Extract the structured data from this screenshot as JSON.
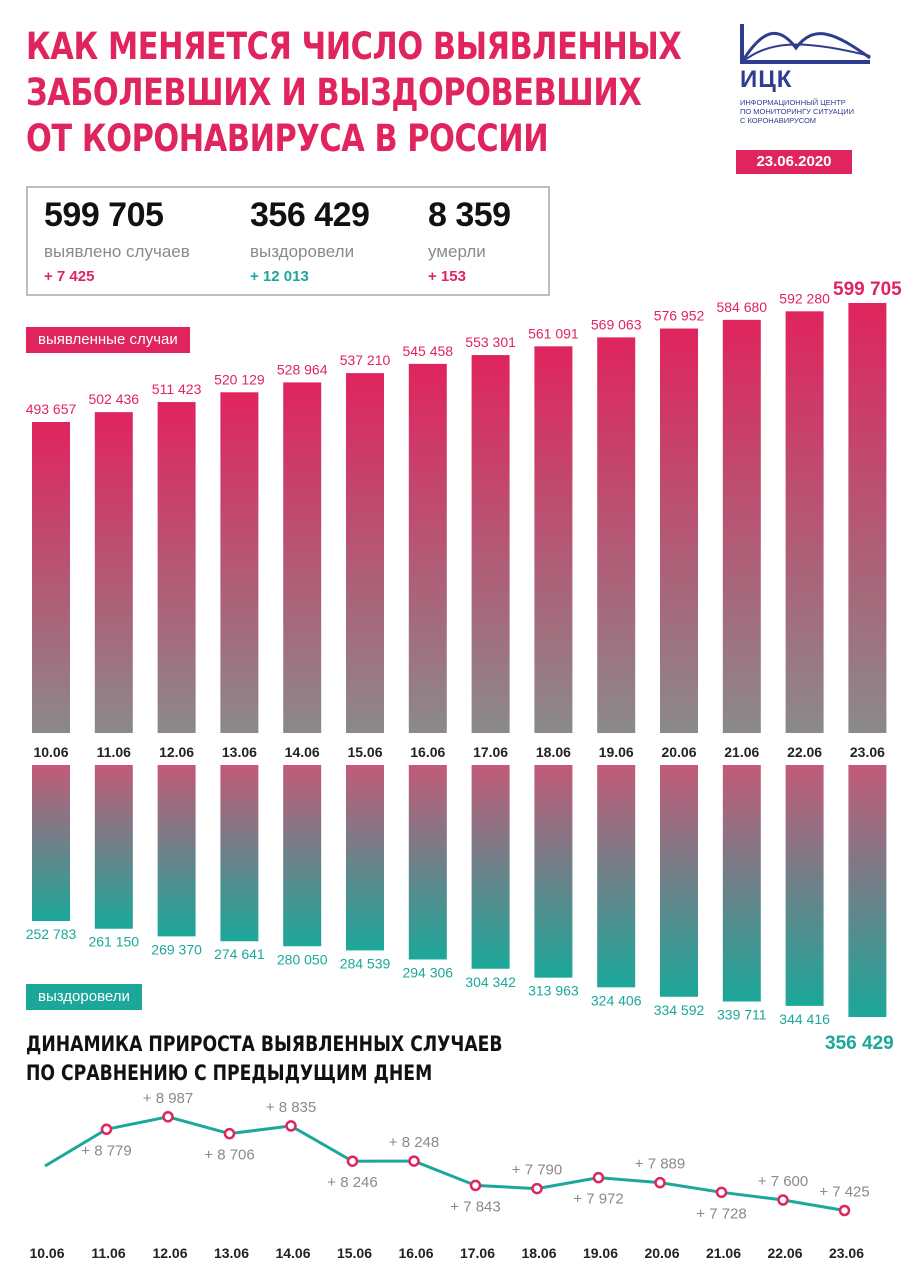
{
  "title_lines": [
    "Как меняется число выявленных",
    "заболевших и выздоровевших",
    "от коронавируса в России"
  ],
  "logo": {
    "abbr": "ИЦК",
    "text_lines": [
      "информационный центр",
      "по мониторингу ситуации",
      "с коронавирусом"
    ],
    "color": "#2e3d8f"
  },
  "date": "23.06.2020",
  "summary": {
    "cases": {
      "value": "599 705",
      "label": "выявлено случаев",
      "delta": "+ 7 425"
    },
    "recovered": {
      "value": "356 429",
      "label": "выздоровели",
      "delta": "+ 12 013"
    },
    "deaths": {
      "value": "8 359",
      "label": "умерли",
      "delta": "+ 153"
    }
  },
  "colors": {
    "cases": "#e0245e",
    "recovered": "#1ba89a",
    "gray": "#8a8a8a"
  },
  "sections": {
    "cases": "выявленные случаи",
    "recovered": "выздоровели"
  },
  "dynamics_title_lines": [
    "Динамика прироста выявленных случаев",
    "по сравнению с предыдущим днем"
  ],
  "chart_data": [
    {
      "type": "bar",
      "categories": [
        "10.06",
        "11.06",
        "12.06",
        "13.06",
        "14.06",
        "15.06",
        "16.06",
        "17.06",
        "18.06",
        "19.06",
        "20.06",
        "21.06",
        "22.06",
        "23.06"
      ],
      "series": [
        {
          "name": "выявленные случаи",
          "values": [
            493657,
            502436,
            511423,
            520129,
            528964,
            537210,
            545458,
            553301,
            561091,
            569063,
            576952,
            584680,
            592280,
            599705
          ],
          "labels": [
            "493 657",
            "502 436",
            "511 423",
            "520 129",
            "528 964",
            "537 210",
            "545 458",
            "553 301",
            "561 091",
            "569 063",
            "576 952",
            "584 680",
            "592 280",
            "599 705"
          ]
        },
        {
          "name": "выздоровели",
          "values": [
            252783,
            261150,
            269370,
            274641,
            280050,
            284539,
            294306,
            304342,
            313963,
            324406,
            334592,
            339711,
            344416,
            356429
          ],
          "labels": [
            "252 783",
            "261 150",
            "269 370",
            "274 641",
            "280 050",
            "284 539",
            "294 306",
            "304 342",
            "313 963",
            "324 406",
            "334 592",
            "339 711",
            "344 416",
            "356 429"
          ]
        }
      ]
    },
    {
      "type": "line",
      "title": "Динамика прироста выявленных случаев по сравнению с предыдущим днем",
      "categories": [
        "10.06",
        "11.06",
        "12.06",
        "13.06",
        "14.06",
        "15.06",
        "16.06",
        "17.06",
        "18.06",
        "19.06",
        "20.06",
        "21.06",
        "22.06",
        "23.06"
      ],
      "values": [
        null,
        8779,
        8987,
        8706,
        8835,
        8246,
        8248,
        7843,
        7790,
        7972,
        7889,
        7728,
        7600,
        7425
      ],
      "labels": [
        "",
        "+ 8 779",
        "+ 8 987",
        "+ 8 706",
        "+ 8 835",
        "+ 8 246",
        "+ 8 248",
        "+ 7 843",
        "+ 7 790",
        "+ 7 972",
        "+ 7 889",
        "+ 7 728",
        "+ 7 600",
        "+ 7 425"
      ],
      "ylim": [
        7200,
        9100
      ]
    }
  ]
}
